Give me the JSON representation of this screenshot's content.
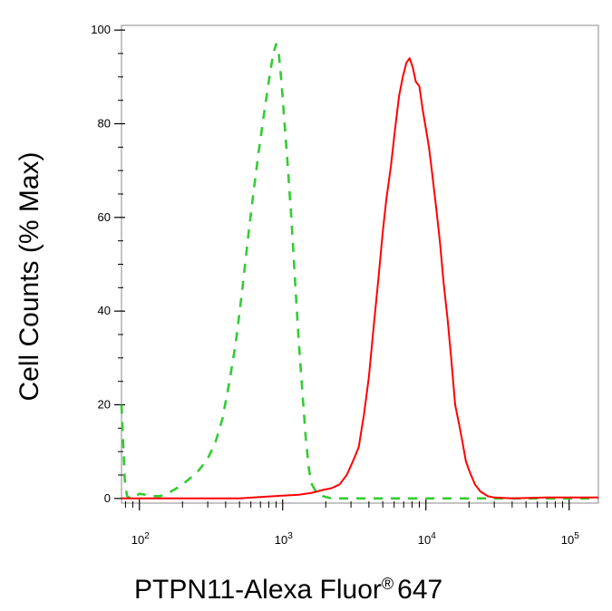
{
  "chart_data": {
    "type": "line",
    "xlabel": "PTPN11-Alexa Fluor",
    "xlabel_mark": "®",
    "xlabel_suffix": "647",
    "ylabel": "Cell Counts (% Max)",
    "x_scale": "log",
    "xlim": [
      75,
      160000
    ],
    "ylim": [
      -1,
      101
    ],
    "yticks": [
      "0",
      "20",
      "40",
      "60",
      "80",
      "100"
    ],
    "xticks": [
      {
        "base": "10",
        "exp": "2",
        "value": 100
      },
      {
        "base": "10",
        "exp": "3",
        "value": 1000
      },
      {
        "base": "10",
        "exp": "4",
        "value": 10000
      },
      {
        "base": "10",
        "exp": "5",
        "value": 100000
      }
    ],
    "grid": false,
    "series": [
      {
        "color": "#33cc33",
        "style": "dashed",
        "points": [
          [
            75,
            20
          ],
          [
            77,
            12
          ],
          [
            79,
            4
          ],
          [
            82,
            0.5
          ],
          [
            87,
            0
          ],
          [
            90,
            0
          ],
          [
            95,
            0.5
          ],
          [
            100,
            1
          ],
          [
            110,
            0.8
          ],
          [
            125,
            0.5
          ],
          [
            140,
            0.5
          ],
          [
            160,
            1.2
          ],
          [
            190,
            2.5
          ],
          [
            220,
            4
          ],
          [
            260,
            6
          ],
          [
            300,
            8.5
          ],
          [
            340,
            12
          ],
          [
            380,
            17
          ],
          [
            420,
            24
          ],
          [
            470,
            33
          ],
          [
            520,
            44
          ],
          [
            580,
            57
          ],
          [
            630,
            66
          ],
          [
            680,
            74
          ],
          [
            740,
            82
          ],
          [
            800,
            89
          ],
          [
            860,
            95
          ],
          [
            900,
            97
          ],
          [
            940,
            95
          ],
          [
            980,
            89
          ],
          [
            1020,
            82
          ],
          [
            1080,
            72
          ],
          [
            1150,
            60
          ],
          [
            1230,
            45
          ],
          [
            1300,
            33
          ],
          [
            1380,
            22
          ],
          [
            1450,
            13
          ],
          [
            1530,
            6
          ],
          [
            1600,
            3
          ],
          [
            1700,
            1.5
          ],
          [
            1900,
            0.5
          ],
          [
            2200,
            0
          ],
          [
            3000,
            0
          ],
          [
            5000,
            0
          ],
          [
            10000,
            0
          ],
          [
            30000,
            0
          ],
          [
            100000,
            0
          ],
          [
            160000,
            0
          ]
        ]
      },
      {
        "color": "#ff0000",
        "style": "solid",
        "points": [
          [
            75,
            0
          ],
          [
            200,
            0
          ],
          [
            500,
            0
          ],
          [
            700,
            0.3
          ],
          [
            1000,
            0.6
          ],
          [
            1300,
            0.8
          ],
          [
            1600,
            1.2
          ],
          [
            1900,
            1.8
          ],
          [
            2200,
            2.2
          ],
          [
            2500,
            3
          ],
          [
            2800,
            5
          ],
          [
            3000,
            7
          ],
          [
            3200,
            9
          ],
          [
            3400,
            11
          ],
          [
            3700,
            18
          ],
          [
            4000,
            26
          ],
          [
            4300,
            36
          ],
          [
            4700,
            48
          ],
          [
            5000,
            57
          ],
          [
            5300,
            64
          ],
          [
            5700,
            71
          ],
          [
            6100,
            79
          ],
          [
            6500,
            86
          ],
          [
            6900,
            90
          ],
          [
            7300,
            93
          ],
          [
            7700,
            94
          ],
          [
            8100,
            92
          ],
          [
            8500,
            89
          ],
          [
            9000,
            88
          ],
          [
            9500,
            83
          ],
          [
            10000,
            79
          ],
          [
            10500,
            75
          ],
          [
            11000,
            70
          ],
          [
            11800,
            62
          ],
          [
            12500,
            55
          ],
          [
            13300,
            46
          ],
          [
            14200,
            38
          ],
          [
            15000,
            30
          ],
          [
            16000,
            20
          ],
          [
            17000,
            16
          ],
          [
            18000,
            12
          ],
          [
            19000,
            8
          ],
          [
            20000,
            6
          ],
          [
            22000,
            3
          ],
          [
            24000,
            1.5
          ],
          [
            27000,
            0.5
          ],
          [
            30000,
            0.2
          ],
          [
            40000,
            0
          ],
          [
            70000,
            0.2
          ],
          [
            100000,
            0.2
          ],
          [
            160000,
            0.2
          ]
        ]
      }
    ]
  }
}
